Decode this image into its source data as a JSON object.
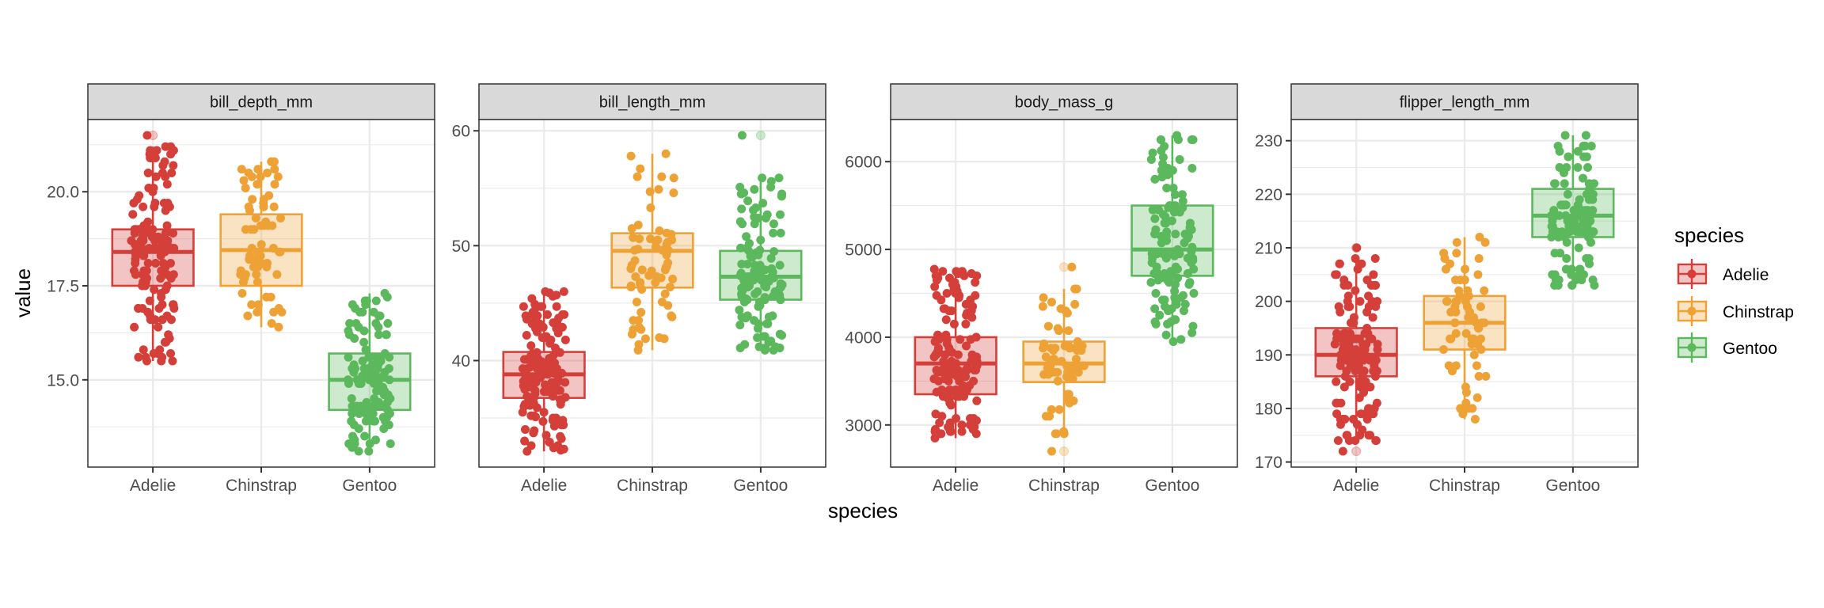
{
  "chart_data": {
    "type": "boxplot",
    "subtype": "faceted boxplot with jittered points",
    "xlabel": "species",
    "ylabel": "value",
    "categories": [
      "Adelie",
      "Chinstrap",
      "Gentoo"
    ],
    "colors": {
      "Adelie": "#D43F3A",
      "Chinstrap": "#EEA236",
      "Gentoo": "#5CB85C"
    },
    "n": {
      "Adelie": 151,
      "Chinstrap": 68,
      "Gentoo": 123
    },
    "legend": {
      "title": "species",
      "position": "right",
      "entries": [
        "Adelie",
        "Chinstrap",
        "Gentoo"
      ]
    },
    "grid": true,
    "scales": "free_y",
    "facets": [
      {
        "title": "bill_depth_mm",
        "ylim": [
          12.68,
          21.92
        ],
        "yticks": [
          15.0,
          17.5,
          20.0
        ],
        "ytick_labels": [
          "15.0",
          "17.5",
          "20.0"
        ],
        "minor_breaks": [
          13.75,
          16.25,
          18.75,
          21.25
        ],
        "precision": 0.1,
        "boxes": [
          {
            "species": "Adelie",
            "min": 15.5,
            "q1": 17.5,
            "median": 18.4,
            "q3": 19.0,
            "max": 21.2,
            "outliers": [
              21.5
            ]
          },
          {
            "species": "Chinstrap",
            "min": 16.4,
            "q1": 17.5,
            "median": 18.45,
            "q3": 19.4,
            "max": 20.8,
            "outliers": []
          },
          {
            "species": "Gentoo",
            "min": 13.1,
            "q1": 14.2,
            "median": 15.0,
            "q3": 15.7,
            "max": 17.3,
            "outliers": []
          }
        ]
      },
      {
        "title": "bill_length_mm",
        "ylim": [
          30.73,
          60.98
        ],
        "yticks": [
          40,
          50,
          60
        ],
        "ytick_labels": [
          "40",
          "50",
          "60"
        ],
        "minor_breaks": [
          35,
          45,
          55
        ],
        "precision": 0.1,
        "boxes": [
          {
            "species": "Adelie",
            "min": 32.1,
            "q1": 36.75,
            "median": 38.8,
            "q3": 40.75,
            "max": 46.0,
            "outliers": []
          },
          {
            "species": "Chinstrap",
            "min": 40.9,
            "q1": 46.35,
            "median": 49.55,
            "q3": 51.08,
            "max": 58.0,
            "outliers": []
          },
          {
            "species": "Gentoo",
            "min": 40.9,
            "q1": 45.3,
            "median": 47.3,
            "q3": 49.55,
            "max": 55.9,
            "outliers": [
              59.6
            ]
          }
        ]
      },
      {
        "title": "body_mass_g",
        "ylim": [
          2520,
          6480
        ],
        "yticks": [
          3000,
          4000,
          5000,
          6000
        ],
        "ytick_labels": [
          "3000",
          "4000",
          "5000",
          "6000"
        ],
        "minor_breaks": [
          3500,
          4500,
          5500
        ],
        "precision": 25,
        "boxes": [
          {
            "species": "Adelie",
            "min": 2850,
            "q1": 3350,
            "median": 3700,
            "q3": 4000,
            "max": 4775,
            "outliers": []
          },
          {
            "species": "Chinstrap",
            "min": 2900,
            "q1": 3488,
            "median": 3700,
            "q3": 3950,
            "max": 4550,
            "outliers": [
              2700,
              4800
            ]
          },
          {
            "species": "Gentoo",
            "min": 3950,
            "q1": 4700,
            "median": 5000,
            "q3": 5500,
            "max": 6300,
            "outliers": []
          }
        ]
      },
      {
        "title": "flipper_length_mm",
        "ylim": [
          169.05,
          233.95
        ],
        "yticks": [
          170,
          180,
          190,
          200,
          210,
          220,
          230
        ],
        "ytick_labels": [
          "170",
          "180",
          "190",
          "200",
          "210",
          "220",
          "230"
        ],
        "minor_breaks": [
          175,
          185,
          195,
          205,
          215,
          225
        ],
        "precision": 1,
        "boxes": [
          {
            "species": "Adelie",
            "min": 174,
            "q1": 186,
            "median": 190,
            "q3": 195,
            "max": 208,
            "outliers": [
              172,
              210
            ]
          },
          {
            "species": "Chinstrap",
            "min": 178,
            "q1": 191,
            "median": 196,
            "q3": 201,
            "max": 212,
            "outliers": []
          },
          {
            "species": "Gentoo",
            "min": 203,
            "q1": 212,
            "median": 216,
            "q3": 221,
            "max": 231,
            "outliers": []
          }
        ]
      }
    ]
  }
}
